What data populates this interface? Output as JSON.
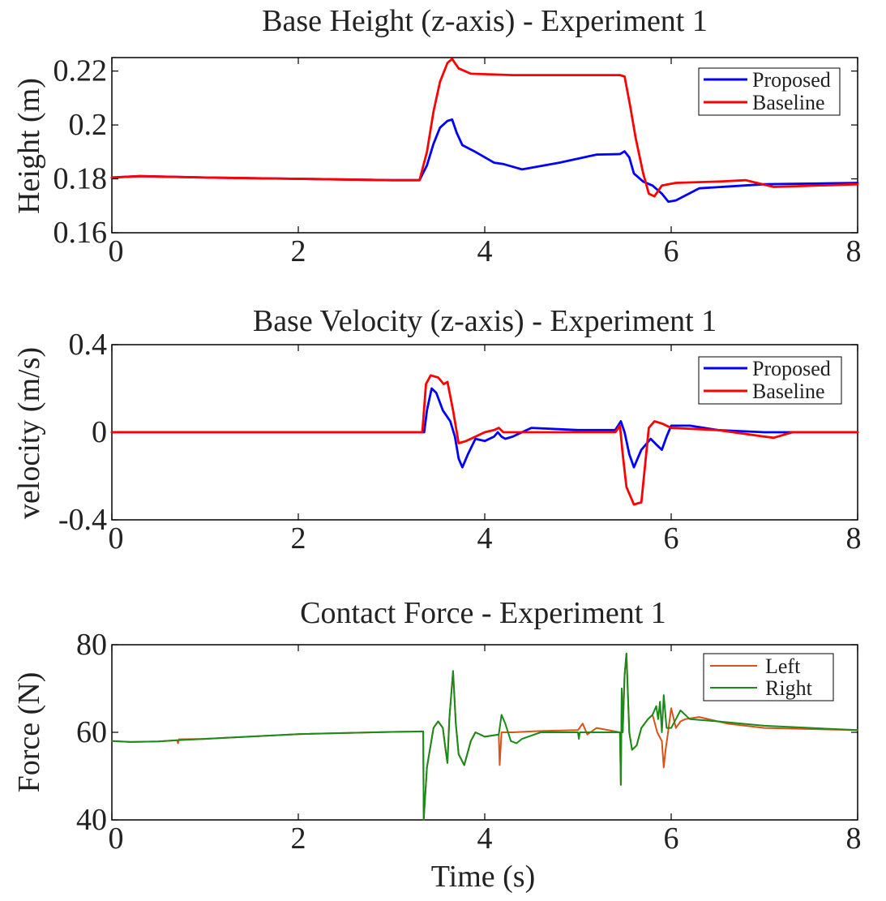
{
  "chart_data": [
    {
      "type": "line",
      "title": "Base Height (z-axis) - Experiment 1",
      "xlabel": "",
      "ylabel": "Height (m)",
      "xlim": [
        0,
        8
      ],
      "ylim": [
        0.16,
        0.225
      ],
      "xticks": [
        0,
        2,
        4,
        6,
        8
      ],
      "xtick_labels": [
        "0",
        "2",
        "4",
        "6",
        "8"
      ],
      "yticks": [
        0.16,
        0.18,
        0.2,
        0.22
      ],
      "ytick_labels": [
        "0.16",
        "0.18",
        "0.2",
        "0.22"
      ],
      "legend": "top-right",
      "series": [
        {
          "name": "Proposed",
          "color": "#0000ff",
          "x": [
            0,
            0.3,
            1,
            2,
            3,
            3.3,
            3.38,
            3.45,
            3.52,
            3.6,
            3.65,
            3.7,
            3.76,
            3.9,
            4.1,
            4.2,
            4.4,
            4.8,
            5.2,
            5.45,
            5.5,
            5.55,
            5.6,
            5.7,
            5.8,
            5.9,
            5.97,
            6.05,
            6.3,
            7,
            8
          ],
          "y": [
            0.1805,
            0.181,
            0.1805,
            0.18,
            0.1795,
            0.1795,
            0.185,
            0.193,
            0.199,
            0.2015,
            0.202,
            0.197,
            0.1925,
            0.19,
            0.186,
            0.1855,
            0.1835,
            0.186,
            0.189,
            0.1892,
            0.1902,
            0.188,
            0.182,
            0.179,
            0.1775,
            0.1745,
            0.1715,
            0.172,
            0.1765,
            0.178,
            0.1785
          ]
        },
        {
          "name": "Baseline",
          "color": "#ff0000",
          "x": [
            0,
            0.3,
            1,
            2,
            3,
            3.3,
            3.38,
            3.45,
            3.52,
            3.6,
            3.65,
            3.72,
            3.85,
            4.3,
            5.0,
            5.45,
            5.5,
            5.56,
            5.62,
            5.7,
            5.76,
            5.82,
            5.9,
            6.05,
            6.5,
            6.8,
            7.1,
            8
          ],
          "y": [
            0.1805,
            0.181,
            0.1805,
            0.18,
            0.1795,
            0.1795,
            0.19,
            0.205,
            0.216,
            0.223,
            0.2245,
            0.221,
            0.219,
            0.2185,
            0.2185,
            0.2185,
            0.218,
            0.207,
            0.195,
            0.182,
            0.1745,
            0.1735,
            0.1775,
            0.1785,
            0.179,
            0.1795,
            0.177,
            0.178
          ]
        }
      ]
    },
    {
      "type": "line",
      "title": "Base Velocity (z-axis) - Experiment 1",
      "xlabel": "",
      "ylabel": "velocity (m/s)",
      "xlim": [
        0,
        8
      ],
      "ylim": [
        -0.4,
        0.4
      ],
      "xticks": [
        0,
        2,
        4,
        6,
        8
      ],
      "xtick_labels": [
        "0",
        "2",
        "4",
        "6",
        "8"
      ],
      "yticks": [
        -0.4,
        0,
        0.4
      ],
      "ytick_labels": [
        "-0.4",
        "0",
        "0.4"
      ],
      "legend": "top-right",
      "series": [
        {
          "name": "Proposed",
          "color": "#0000ff",
          "x": [
            0,
            1,
            2,
            3,
            3.35,
            3.38,
            3.43,
            3.48,
            3.55,
            3.63,
            3.68,
            3.72,
            3.76,
            3.82,
            3.9,
            4.0,
            4.1,
            4.14,
            4.18,
            4.22,
            4.3,
            4.5,
            5.0,
            5.4,
            5.46,
            5.5,
            5.55,
            5.6,
            5.68,
            5.78,
            5.85,
            5.9,
            5.95,
            6.0,
            6.2,
            6.5,
            7,
            8
          ],
          "y": [
            0,
            0,
            0,
            0,
            0,
            0.1,
            0.2,
            0.18,
            0.1,
            0.05,
            -0.02,
            -0.12,
            -0.16,
            -0.1,
            -0.03,
            -0.04,
            -0.02,
            0,
            -0.02,
            -0.03,
            -0.02,
            0.02,
            0.01,
            0.01,
            0.05,
            0,
            -0.1,
            -0.16,
            -0.08,
            -0.03,
            -0.06,
            -0.08,
            -0.02,
            0.03,
            0.03,
            0.01,
            0,
            0
          ]
        },
        {
          "name": "Baseline",
          "color": "#ff0000",
          "x": [
            0,
            1,
            2,
            3,
            3.33,
            3.37,
            3.42,
            3.5,
            3.56,
            3.6,
            3.66,
            3.72,
            3.8,
            4.0,
            4.1,
            4.15,
            4.2,
            4.4,
            4.8,
            5.4,
            5.45,
            5.48,
            5.52,
            5.6,
            5.68,
            5.72,
            5.76,
            5.82,
            5.9,
            6.0,
            6.5,
            7.0,
            7.1,
            7.3,
            8
          ],
          "y": [
            0,
            0,
            0,
            0,
            0,
            0.22,
            0.26,
            0.25,
            0.22,
            0.23,
            0.1,
            -0.05,
            -0.04,
            0,
            0.01,
            0.02,
            0,
            0,
            0,
            0,
            0.03,
            -0.1,
            -0.25,
            -0.33,
            -0.32,
            -0.15,
            0.02,
            0.05,
            0.04,
            0.02,
            0.01,
            -0.02,
            -0.025,
            0,
            0
          ]
        }
      ]
    },
    {
      "type": "line",
      "title": "Contact Force - Experiment  1",
      "xlabel": "Time (s)",
      "ylabel": "Force (N)",
      "xlim": [
        0,
        8
      ],
      "ylim": [
        40,
        80
      ],
      "xticks": [
        0,
        2,
        4,
        6,
        8
      ],
      "xtick_labels": [
        "0",
        "2",
        "4",
        "6",
        "8"
      ],
      "yticks": [
        40,
        60,
        80
      ],
      "ytick_labels": [
        "40",
        "60",
        "80"
      ],
      "legend": "top-right",
      "series": [
        {
          "name": "Left",
          "color": "#d95319",
          "x": [
            0,
            0.2,
            0.5,
            0.7,
            0.71,
            0.72,
            1,
            2,
            3,
            3.34,
            3.345,
            3.38,
            3.45,
            3.5,
            3.55,
            3.58,
            3.6,
            3.62,
            3.66,
            3.69,
            3.72,
            3.78,
            3.85,
            3.9,
            4.0,
            4.15,
            4.16,
            4.18,
            4.3,
            4.6,
            5.0,
            5.05,
            5.1,
            5.2,
            5.45,
            5.46,
            5.47,
            5.48,
            5.5,
            5.52,
            5.55,
            5.58,
            5.63,
            5.68,
            5.75,
            5.8,
            5.85,
            5.9,
            5.92,
            5.94,
            5.96,
            6.0,
            6.05,
            6.1,
            6.15,
            6.3,
            6.6,
            7,
            8
          ],
          "y": [
            58,
            57.8,
            57.9,
            58.2,
            57.5,
            58.4,
            58.5,
            59.6,
            60.1,
            60.2,
            40,
            52,
            61,
            62.5,
            61,
            56,
            53,
            63,
            74,
            62,
            55,
            52.5,
            58,
            60,
            59,
            59.5,
            52.5,
            60,
            60,
            60.3,
            60.5,
            62,
            59.5,
            61,
            60,
            48,
            70,
            60,
            73,
            78,
            60,
            56,
            57,
            61,
            63,
            64,
            60,
            58,
            52,
            56,
            59,
            65.5,
            61,
            62.5,
            63,
            63.5,
            62,
            61,
            60.5
          ]
        },
        {
          "name": "Right",
          "color": "#1a8a1a",
          "x": [
            0,
            0.2,
            0.5,
            0.7,
            1,
            2,
            3,
            3.34,
            3.345,
            3.38,
            3.45,
            3.5,
            3.55,
            3.58,
            3.6,
            3.62,
            3.66,
            3.69,
            3.72,
            3.78,
            3.85,
            3.9,
            4.0,
            4.15,
            4.18,
            4.22,
            4.28,
            4.34,
            4.4,
            4.6,
            5.0,
            5.01,
            5.02,
            5.2,
            5.45,
            5.46,
            5.47,
            5.48,
            5.5,
            5.52,
            5.55,
            5.58,
            5.63,
            5.68,
            5.75,
            5.8,
            5.84,
            5.86,
            5.88,
            5.9,
            5.92,
            5.95,
            6.0,
            6.05,
            6.1,
            6.2,
            6.5,
            7,
            8
          ],
          "y": [
            58,
            57.8,
            57.9,
            58.2,
            58.5,
            59.6,
            60.1,
            60.2,
            40,
            52,
            61,
            62.5,
            61,
            56,
            53,
            63,
            74,
            62,
            55,
            52.5,
            58,
            60,
            59,
            59.5,
            64,
            62,
            58,
            57.5,
            58.5,
            60,
            60,
            58.5,
            60,
            60,
            60,
            48,
            70,
            60,
            73,
            78,
            60,
            56,
            57,
            61,
            63,
            64,
            66,
            63,
            67,
            60,
            68.5,
            61,
            61,
            63,
            65,
            63,
            62.5,
            61.5,
            60.5
          ]
        }
      ]
    }
  ]
}
